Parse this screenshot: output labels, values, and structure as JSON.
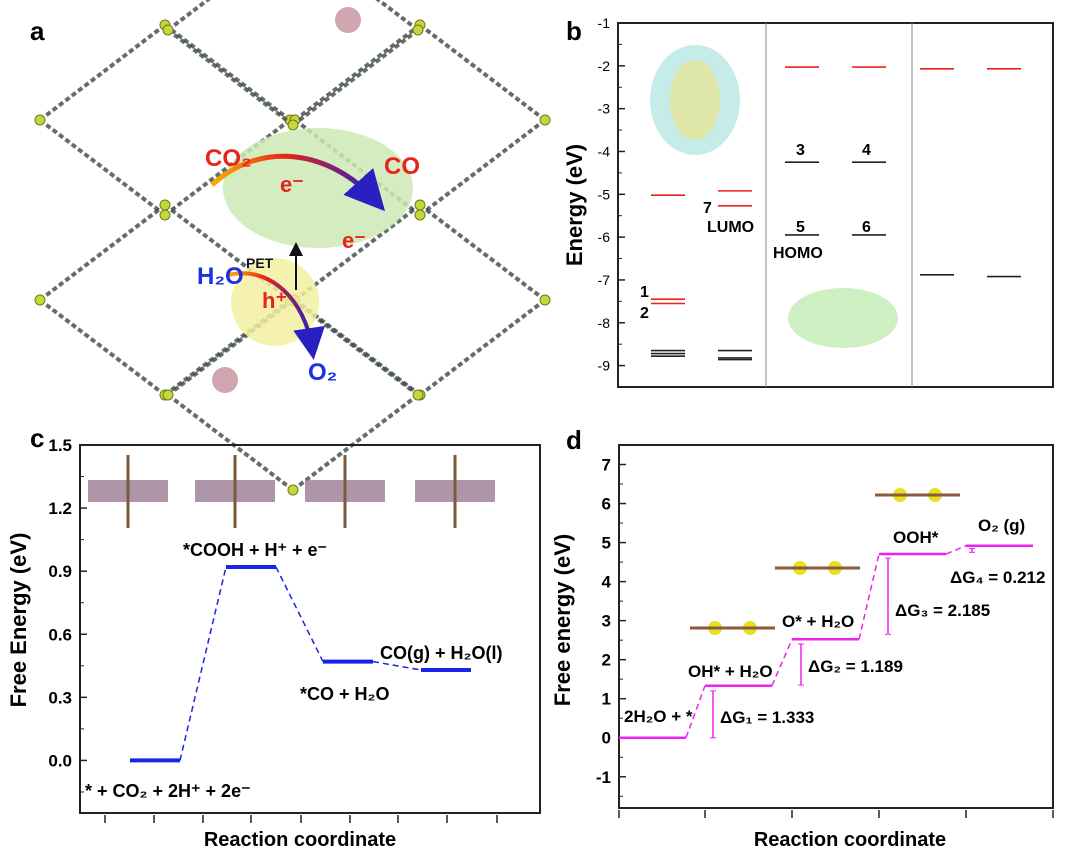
{
  "panel_labels": {
    "a": "a",
    "b": "b",
    "c": "c",
    "d": "d"
  },
  "panel_a": {
    "labels": {
      "co2": "CO₂",
      "e1": "e⁻",
      "e2": "e⁻",
      "co": "CO",
      "pet": "PET",
      "h2o": "H₂O",
      "hplus": "h⁺",
      "o2": "O₂"
    },
    "colors": {
      "red": "#e8231b",
      "blue": "#1d2fe0",
      "green_region": "#cde9b4",
      "yellow_region": "#f2f0a0",
      "framework": "#3d4a45"
    }
  },
  "chart_data": [
    {
      "id": "b",
      "type": "energy-level diagram",
      "ylabel": "Energy (eV)",
      "ylim": [
        -9.5,
        -1
      ],
      "yticks": [
        -1,
        -2,
        -3,
        -4,
        -5,
        -6,
        -7,
        -8,
        -9
      ],
      "ytick_labels": [
        "-1",
        "-2",
        "-3",
        "-4",
        "-5",
        "-6",
        "-7",
        "-8",
        "-9"
      ],
      "columns": [
        {
          "red": [
            -5.02,
            -7.45,
            -7.55
          ],
          "black": [
            -8.65,
            -8.72,
            -8.78
          ]
        },
        {
          "red": [
            -4.92,
            -5.27
          ],
          "black": [
            -8.65,
            -8.82,
            -8.86
          ]
        },
        {
          "red": [
            -2.03
          ],
          "black": [
            -4.25,
            -5.95
          ]
        },
        {
          "red": [
            -2.03
          ],
          "black": [
            -4.25,
            -5.95
          ]
        },
        {
          "red": [
            -2.07
          ],
          "black": [
            -6.88
          ]
        },
        {
          "red": [
            -2.07
          ],
          "black": [
            -6.92
          ]
        }
      ],
      "annotations": {
        "l1": "1",
        "l2": "2",
        "l3": "3",
        "l4": "4",
        "l5": "5",
        "l6": "6",
        "l7": "7",
        "lumo": "LUMO",
        "homo": "HOMO"
      },
      "colors": {
        "unoccupied": "#e8231b",
        "occupied": "#222222"
      }
    },
    {
      "id": "c",
      "type": "free-energy step diagram",
      "ylabel": "Free Energy (eV)",
      "xlabel": "Reaction coordinate",
      "ylim": [
        -0.25,
        1.5
      ],
      "yticks": [
        0.0,
        0.3,
        0.6,
        0.9,
        1.2,
        1.5
      ],
      "ytick_labels": [
        "0.0",
        "0.3",
        "0.6",
        "0.9",
        "1.2",
        "1.5"
      ],
      "steps": [
        {
          "label": "* + CO₂ + 2H⁺ + 2e⁻",
          "value": 0.0
        },
        {
          "label": "*COOH + H⁺ + e⁻",
          "value": 0.92
        },
        {
          "label": "*CO + H₂O",
          "value": 0.47
        },
        {
          "label": "CO(g) + H₂O(l)",
          "value": 0.43
        }
      ],
      "color": "#1a24e6"
    },
    {
      "id": "d",
      "type": "free-energy step diagram",
      "ylabel": "Free energy (eV)",
      "xlabel": "Reaction coordinate",
      "ylim": [
        -1.8,
        7.5
      ],
      "yticks": [
        -1,
        0,
        1,
        2,
        3,
        4,
        5,
        6,
        7
      ],
      "ytick_labels": [
        "-1",
        "0",
        "1",
        "2",
        "3",
        "4",
        "5",
        "6",
        "7"
      ],
      "steps": [
        {
          "label": "2H₂O + *",
          "value": 0.0
        },
        {
          "label": "OH* + H₂O",
          "value": 1.333
        },
        {
          "label": "O* + H₂O",
          "value": 2.522
        },
        {
          "label": "OOH*",
          "value": 4.707
        },
        {
          "label": "O₂ (g)",
          "value": 4.919
        }
      ],
      "deltas": [
        {
          "label": "ΔG₁ = 1.333",
          "value": 1.333
        },
        {
          "label": "ΔG₂ = 1.189",
          "value": 1.189
        },
        {
          "label": "ΔG₃ = 2.185",
          "value": 2.185
        },
        {
          "label": "ΔG₄ = 0.212",
          "value": 0.212
        }
      ],
      "color": "#ee22ee"
    }
  ]
}
